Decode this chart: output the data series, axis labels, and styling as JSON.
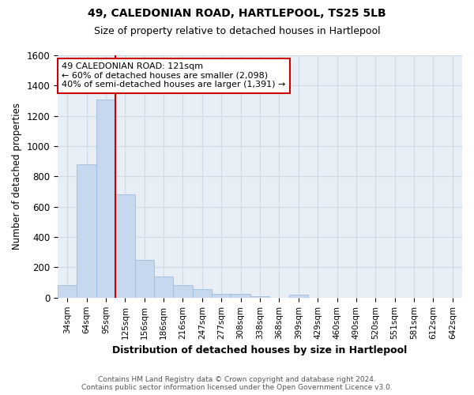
{
  "title": "49, CALEDONIAN ROAD, HARTLEPOOL, TS25 5LB",
  "subtitle": "Size of property relative to detached houses in Hartlepool",
  "xlabel": "Distribution of detached houses by size in Hartlepool",
  "ylabel": "Number of detached properties",
  "bar_color": "#c5d8ee",
  "bar_edge_color": "#a0bcd8",
  "bins": [
    "34sqm",
    "64sqm",
    "95sqm",
    "125sqm",
    "156sqm",
    "186sqm",
    "216sqm",
    "247sqm",
    "277sqm",
    "308sqm",
    "338sqm",
    "368sqm",
    "399sqm",
    "429sqm",
    "460sqm",
    "490sqm",
    "520sqm",
    "551sqm",
    "581sqm",
    "612sqm",
    "642sqm"
  ],
  "values": [
    80,
    880,
    1310,
    680,
    250,
    140,
    85,
    55,
    25,
    25,
    10,
    0,
    20,
    0,
    0,
    0,
    0,
    0,
    0,
    0,
    0
  ],
  "vline_color": "#cc0000",
  "vline_bin_index": 3,
  "annotation_line1": "49 CALEDONIAN ROAD: 121sqm",
  "annotation_line2": "← 60% of detached houses are smaller (2,098)",
  "annotation_line3": "40% of semi-detached houses are larger (1,391) →",
  "ylim": [
    0,
    1600
  ],
  "yticks": [
    0,
    200,
    400,
    600,
    800,
    1000,
    1200,
    1400,
    1600
  ],
  "grid_color": "#d0d8e4",
  "bg_color": "#e8eef5",
  "footer_line1": "Contains HM Land Registry data © Crown copyright and database right 2024.",
  "footer_line2": "Contains public sector information licensed under the Open Government Licence v3.0."
}
